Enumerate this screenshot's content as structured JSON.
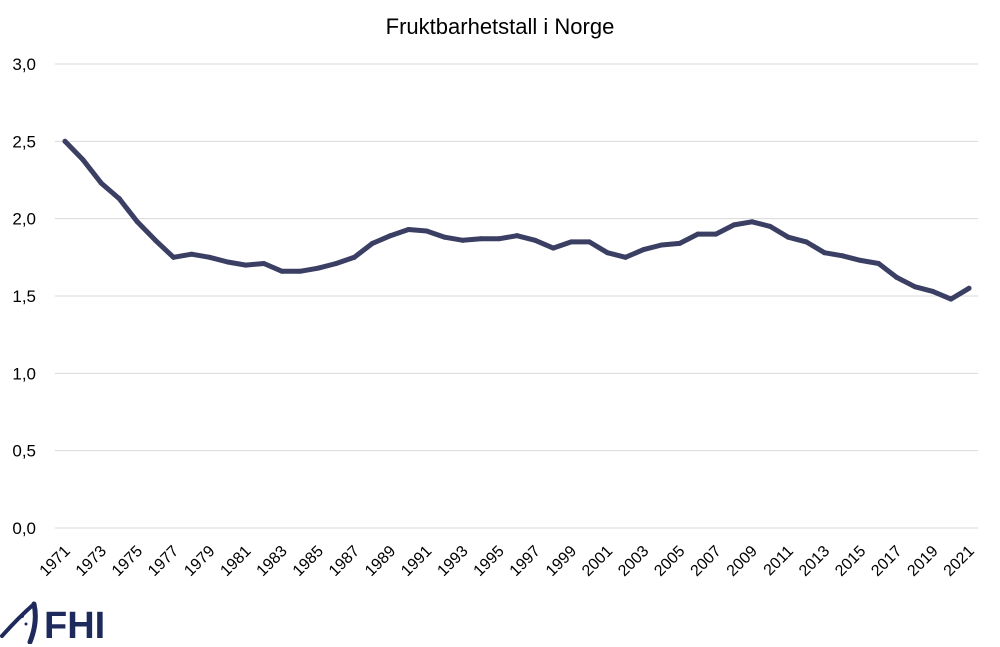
{
  "chart_data": {
    "type": "line",
    "title": "Fruktbarhetstall i Norge",
    "xlabel": "",
    "ylabel": "",
    "ylim": [
      0,
      3.0
    ],
    "y_ticks": [
      "0,0",
      "0,5",
      "1,0",
      "1,5",
      "2,0",
      "2,5",
      "3,0"
    ],
    "grid": true,
    "legend": "none",
    "x": [
      1971,
      1972,
      1973,
      1974,
      1975,
      1976,
      1977,
      1978,
      1979,
      1980,
      1981,
      1982,
      1983,
      1984,
      1985,
      1986,
      1987,
      1988,
      1989,
      1990,
      1991,
      1992,
      1993,
      1994,
      1995,
      1996,
      1997,
      1998,
      1999,
      2000,
      2001,
      2002,
      2003,
      2004,
      2005,
      2006,
      2007,
      2008,
      2009,
      2010,
      2011,
      2012,
      2013,
      2014,
      2015,
      2016,
      2017,
      2018,
      2019,
      2020,
      2021
    ],
    "x_tick_labels": [
      "1971",
      "1973",
      "1975",
      "1977",
      "1979",
      "1981",
      "1983",
      "1985",
      "1987",
      "1989",
      "1991",
      "1993",
      "1995",
      "1997",
      "1999",
      "2001",
      "2003",
      "2005",
      "2007",
      "2009",
      "2011",
      "2013",
      "2015",
      "2017",
      "2019",
      "2021"
    ],
    "series": [
      {
        "values": [
          2.5,
          2.38,
          2.23,
          2.13,
          1.98,
          1.86,
          1.75,
          1.77,
          1.75,
          1.72,
          1.7,
          1.71,
          1.66,
          1.66,
          1.68,
          1.71,
          1.75,
          1.84,
          1.89,
          1.93,
          1.92,
          1.88,
          1.86,
          1.87,
          1.87,
          1.89,
          1.86,
          1.81,
          1.85,
          1.85,
          1.78,
          1.75,
          1.8,
          1.83,
          1.84,
          1.9,
          1.9,
          1.96,
          1.98,
          1.95,
          1.88,
          1.85,
          1.78,
          1.76,
          1.73,
          1.71,
          1.62,
          1.56,
          1.53,
          1.48,
          1.55
        ],
        "color": "#3a3f63"
      }
    ]
  },
  "logo": {
    "text": "FHI",
    "color": "#1f2a5c"
  }
}
